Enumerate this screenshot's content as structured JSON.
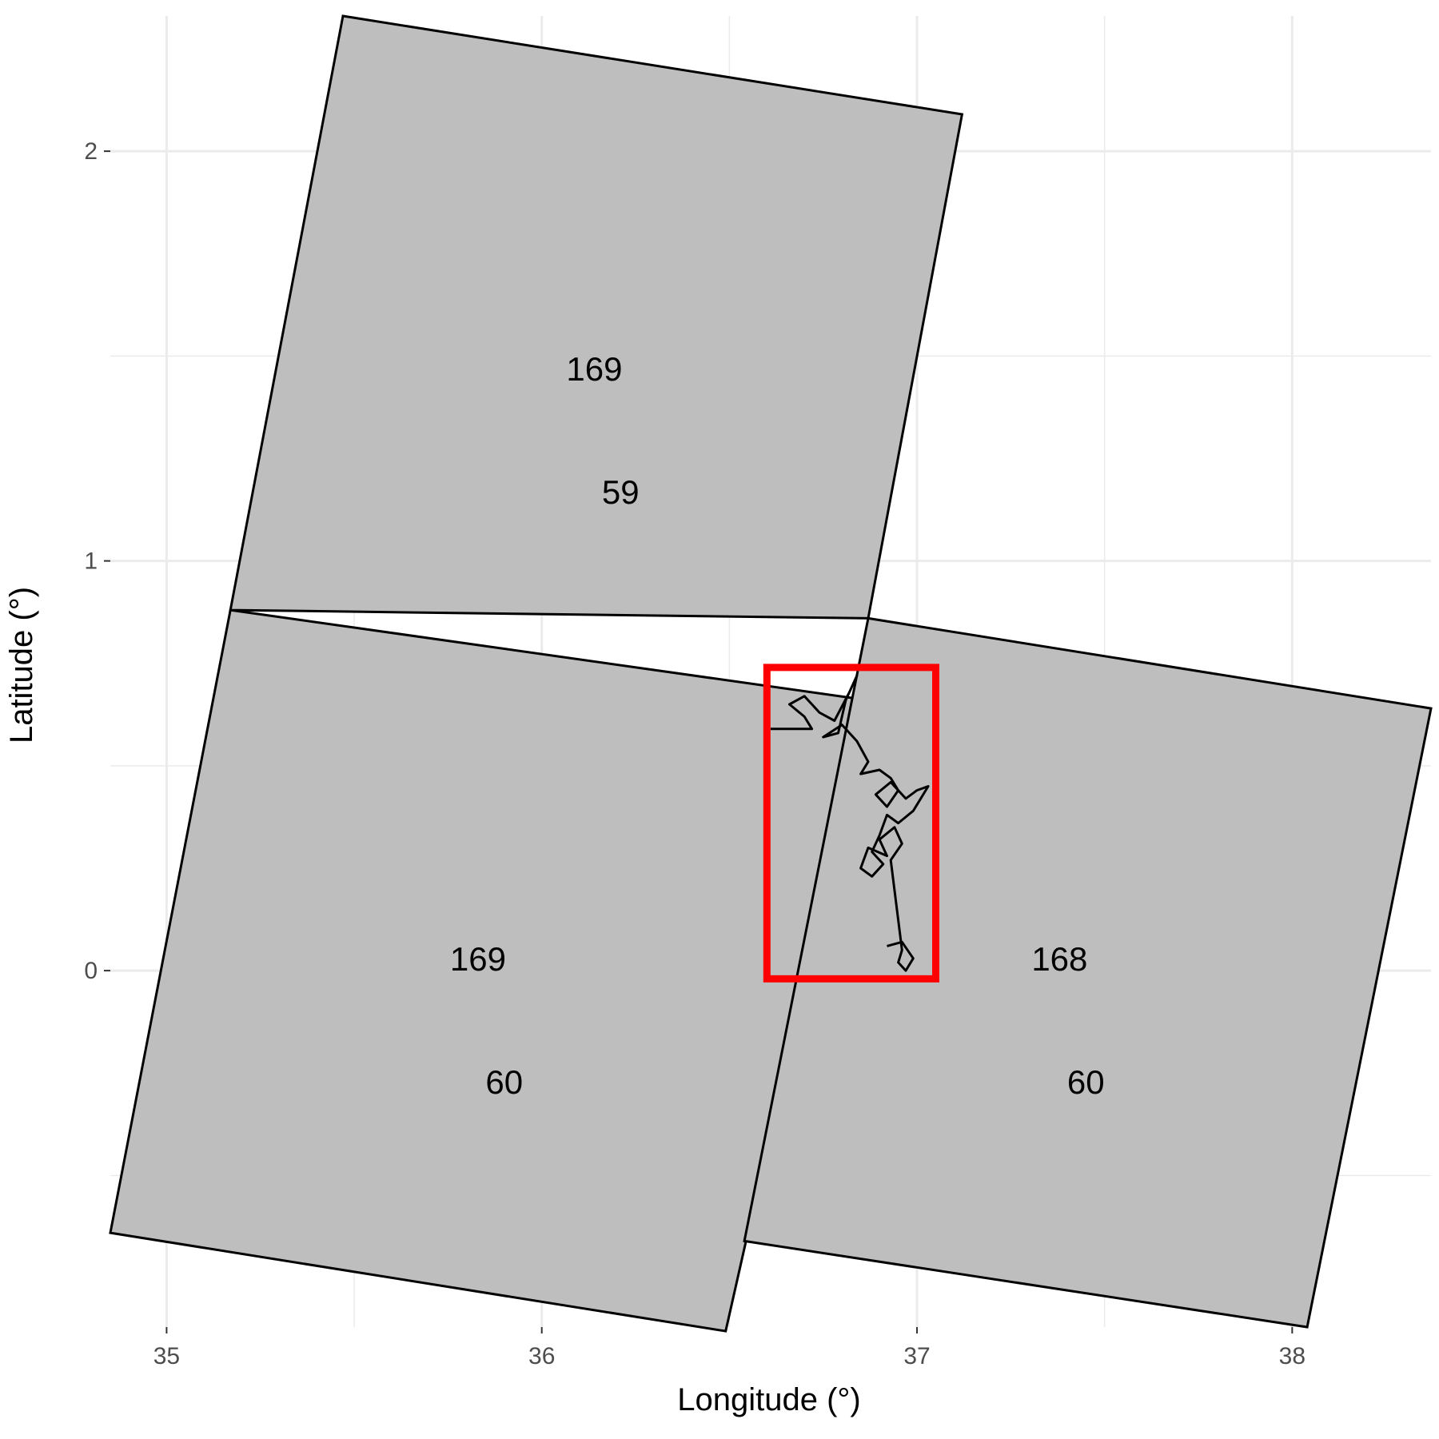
{
  "chart_data": {
    "type": "map",
    "xlabel": "Longitude (°)",
    "ylabel": "Latitude (°)",
    "xlim": [
      34.85,
      38.37
    ],
    "ylim": [
      -0.87,
      2.33
    ],
    "x_ticks": [
      {
        "value": 35,
        "label": "35"
      },
      {
        "value": 36,
        "label": "36"
      },
      {
        "value": 37,
        "label": "37"
      },
      {
        "value": 38,
        "label": "38"
      }
    ],
    "y_ticks": [
      {
        "value": 0,
        "label": "0"
      },
      {
        "value": 1,
        "label": "1"
      },
      {
        "value": 2,
        "label": "2"
      }
    ],
    "minor_x": [
      35.5,
      36.5,
      37.5
    ],
    "minor_y": [
      -0.5,
      0.5,
      1.5
    ],
    "grid": true,
    "tile_fill": "#bebebe",
    "tile_stroke": "#000000",
    "tiles": [
      {
        "path": "169",
        "row": "59",
        "corners": [
          [
            35.47,
            2.33
          ],
          [
            37.12,
            2.09
          ],
          [
            36.87,
            0.86
          ],
          [
            35.17,
            0.88
          ]
        ],
        "label_at": [
          36.14,
          1.44
        ],
        "label2_at": [
          36.21,
          1.14
        ]
      },
      {
        "path": "169",
        "row": "60",
        "corners": [
          [
            35.17,
            0.88
          ],
          [
            36.87,
            0.66
          ],
          [
            36.49,
            -0.88
          ],
          [
            34.85,
            -0.64
          ]
        ],
        "label_at": [
          35.83,
          0.0
        ],
        "label2_at": [
          35.9,
          -0.3
        ]
      },
      {
        "path": "168",
        "row": "60",
        "corners": [
          [
            36.87,
            0.86
          ],
          [
            38.37,
            0.64
          ],
          [
            38.04,
            -0.87
          ],
          [
            36.54,
            -0.66
          ]
        ],
        "label_at": [
          37.38,
          0.0
        ],
        "label2_at": [
          37.45,
          -0.3
        ]
      }
    ],
    "region_box": {
      "xmin": 36.6,
      "xmax": 37.05,
      "ymin": -0.02,
      "ymax": 0.74,
      "color": "#ff0000"
    },
    "track": [
      [
        36.61,
        0.59
      ],
      [
        36.72,
        0.59
      ],
      [
        36.7,
        0.62
      ],
      [
        36.66,
        0.65
      ],
      [
        36.7,
        0.67
      ],
      [
        36.74,
        0.63
      ],
      [
        36.78,
        0.61
      ],
      [
        36.82,
        0.68
      ],
      [
        36.84,
        0.72
      ],
      [
        36.81,
        0.66
      ],
      [
        36.79,
        0.58
      ],
      [
        36.75,
        0.57
      ],
      [
        36.8,
        0.6
      ],
      [
        36.84,
        0.56
      ],
      [
        36.87,
        0.51
      ],
      [
        36.85,
        0.48
      ],
      [
        36.9,
        0.49
      ],
      [
        36.93,
        0.47
      ],
      [
        36.95,
        0.44
      ],
      [
        36.92,
        0.4
      ],
      [
        36.89,
        0.43
      ],
      [
        36.93,
        0.46
      ],
      [
        36.97,
        0.42
      ],
      [
        37.0,
        0.44
      ],
      [
        37.03,
        0.45
      ],
      [
        36.99,
        0.39
      ],
      [
        36.95,
        0.36
      ],
      [
        36.92,
        0.38
      ],
      [
        36.9,
        0.33
      ],
      [
        36.88,
        0.29
      ],
      [
        36.91,
        0.26
      ],
      [
        36.88,
        0.23
      ],
      [
        36.85,
        0.25
      ],
      [
        36.87,
        0.3
      ],
      [
        36.92,
        0.28
      ],
      [
        36.9,
        0.32
      ],
      [
        36.94,
        0.35
      ],
      [
        36.96,
        0.31
      ],
      [
        36.93,
        0.27
      ],
      [
        36.96,
        0.05
      ],
      [
        36.95,
        0.02
      ],
      [
        36.97,
        0.0
      ],
      [
        36.99,
        0.03
      ],
      [
        36.96,
        0.07
      ],
      [
        36.92,
        0.06
      ]
    ]
  }
}
